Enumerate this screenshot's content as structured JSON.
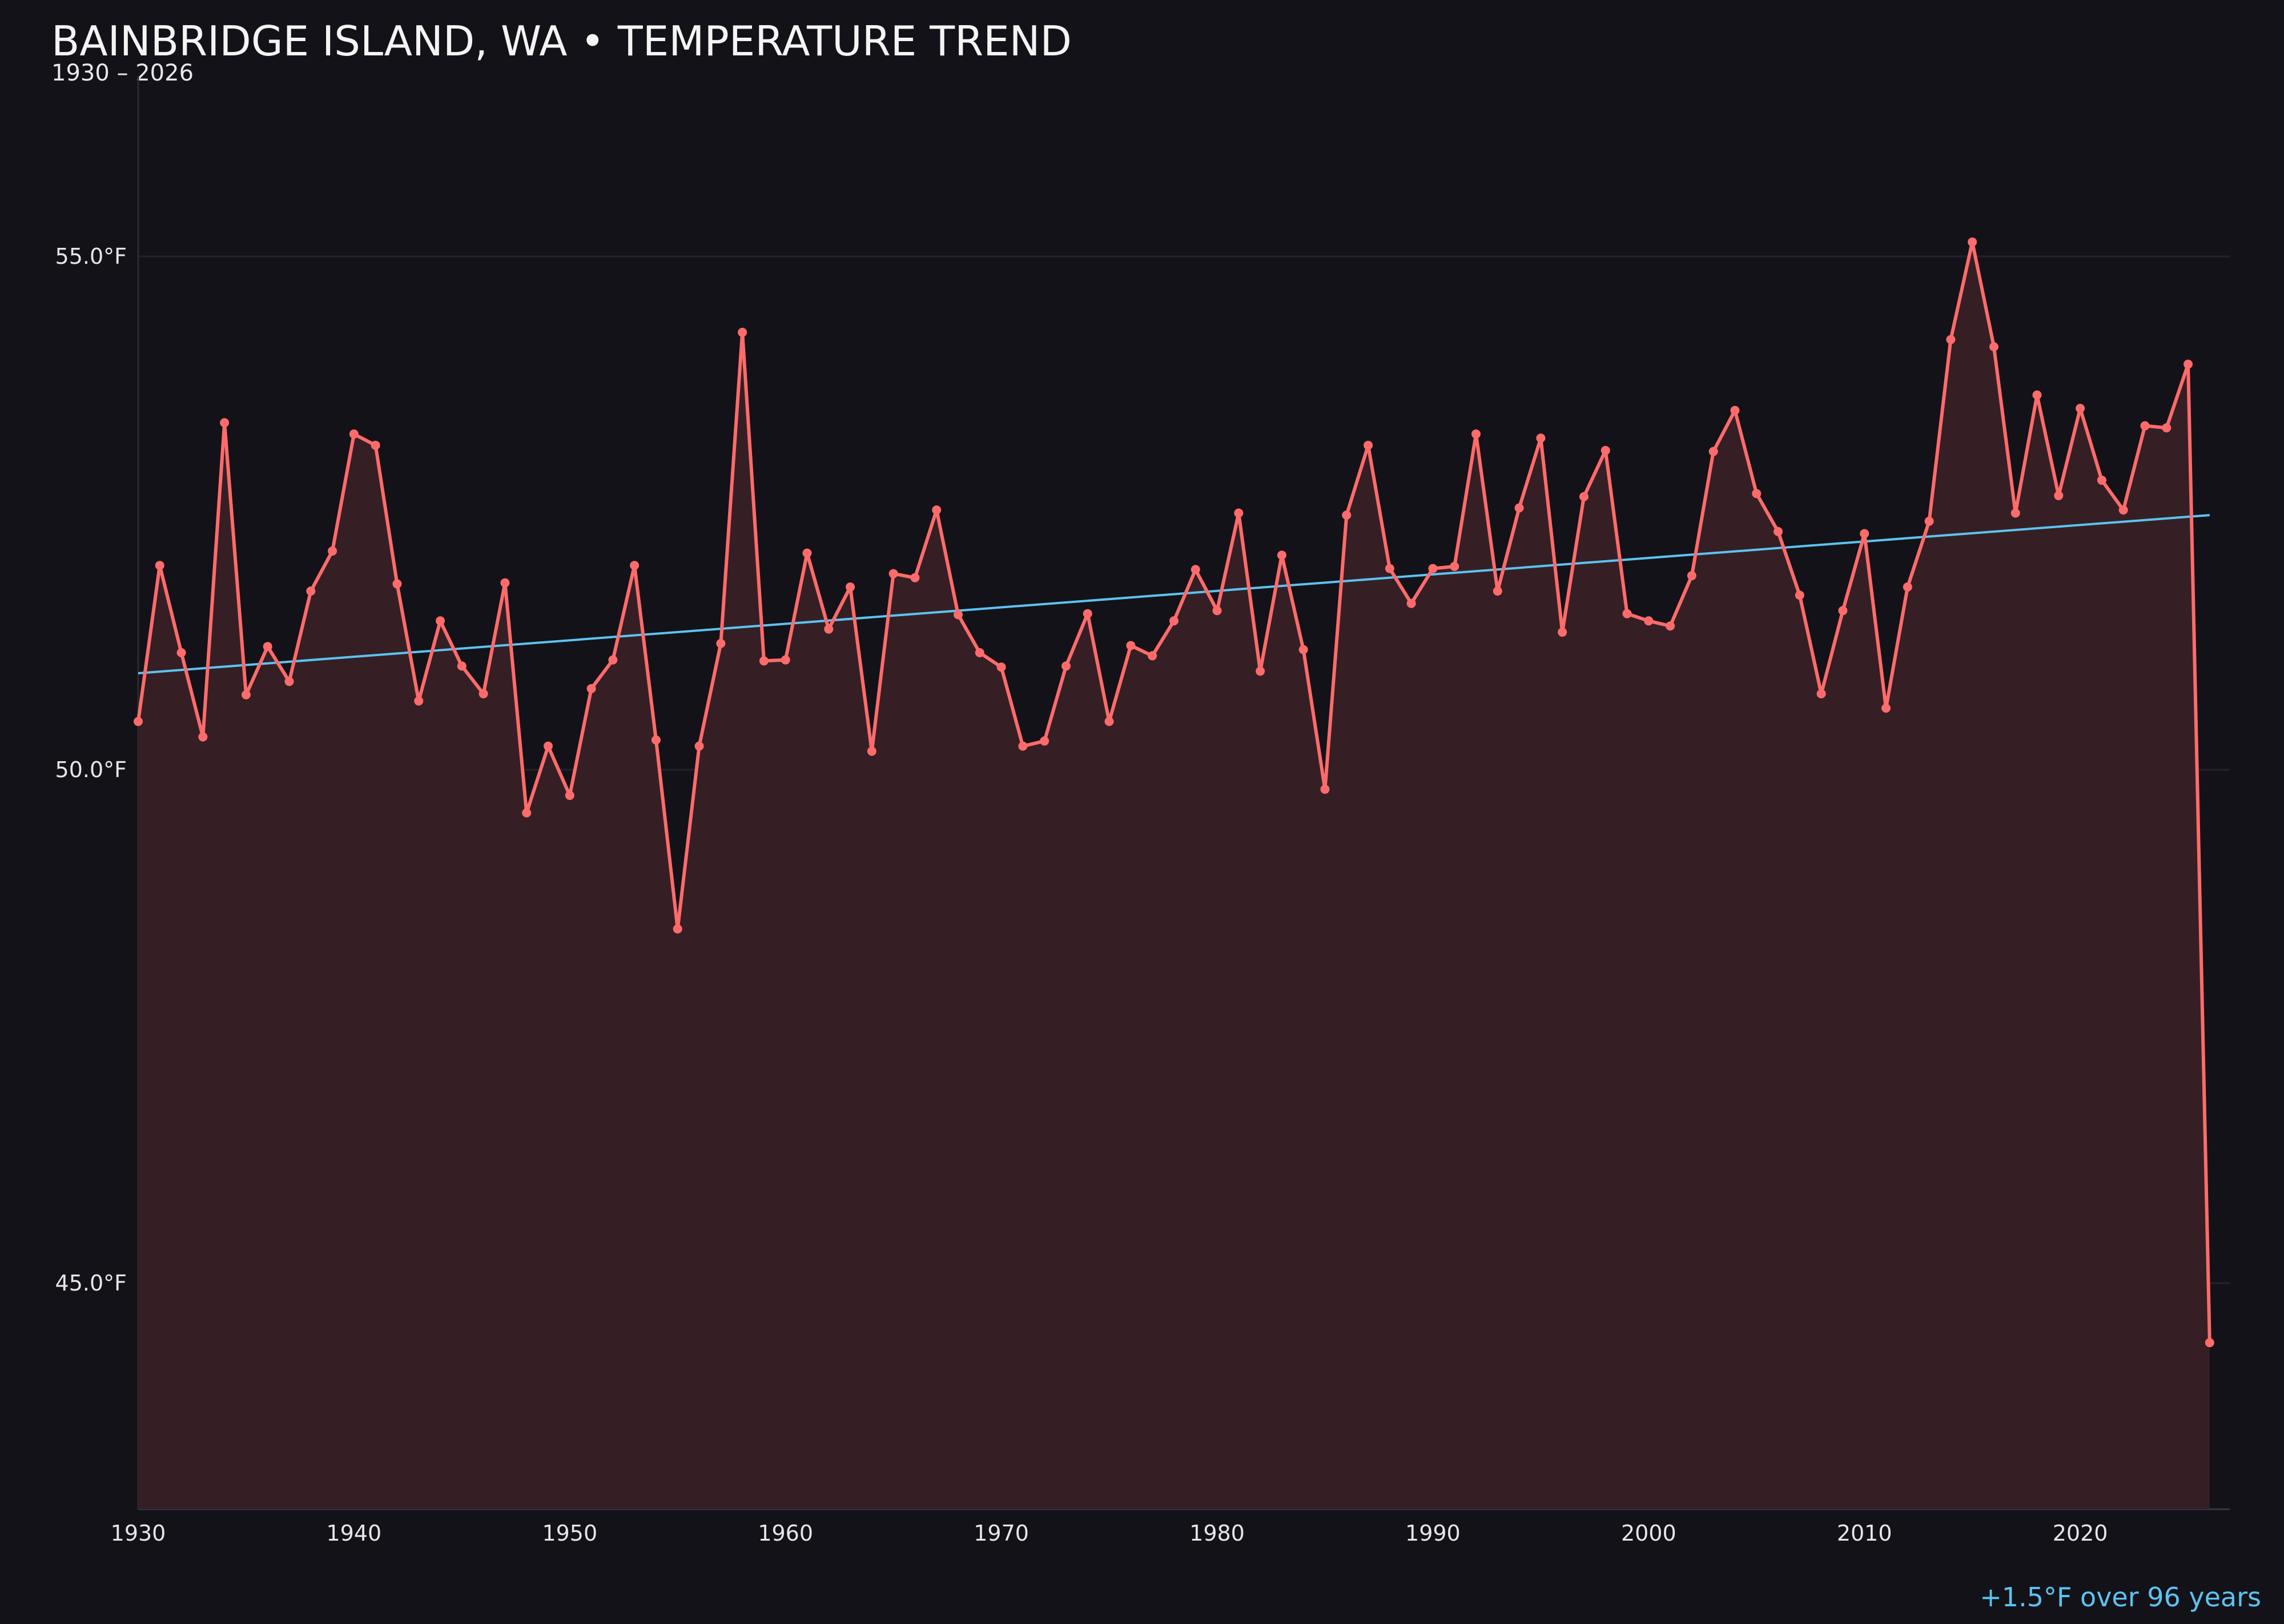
{
  "title": "BAINBRIDGE ISLAND, WA • TEMPERATURE TREND",
  "subtitle": "1930 – 2026",
  "footer": "+1.5°F over 96 years",
  "colors": {
    "background": "#131218",
    "line": "#ff6b6b",
    "fill": "#351f25",
    "trend": "#5cc3f0",
    "grid": "#24222a"
  },
  "chart_data": {
    "type": "line",
    "title": "BAINBRIDGE ISLAND, WA • TEMPERATURE TREND",
    "subtitle": "1930 – 2026",
    "xlabel": "",
    "ylabel": "",
    "xlim": [
      1930,
      2027
    ],
    "ylim": [
      42.8,
      56.8
    ],
    "grid": true,
    "x_ticks": [
      1930,
      1940,
      1950,
      1960,
      1970,
      1980,
      1990,
      2000,
      2010,
      2020
    ],
    "y_ticks": [
      45.0,
      50.0,
      55.0
    ],
    "y_tick_labels": [
      "45.0°F",
      "50.0°F",
      "55.0°F"
    ],
    "x": [
      1930,
      1931,
      1932,
      1933,
      1934,
      1935,
      1936,
      1937,
      1938,
      1939,
      1940,
      1941,
      1942,
      1943,
      1944,
      1945,
      1946,
      1947,
      1948,
      1949,
      1950,
      1951,
      1952,
      1953,
      1954,
      1955,
      1956,
      1957,
      1958,
      1959,
      1960,
      1961,
      1962,
      1963,
      1964,
      1965,
      1966,
      1967,
      1968,
      1969,
      1970,
      1971,
      1972,
      1973,
      1974,
      1975,
      1976,
      1977,
      1978,
      1979,
      1980,
      1981,
      1982,
      1983,
      1984,
      1985,
      1986,
      1987,
      1988,
      1989,
      1990,
      1991,
      1992,
      1993,
      1994,
      1995,
      1996,
      1997,
      1998,
      1999,
      2000,
      2001,
      2002,
      2003,
      2004,
      2005,
      2006,
      2007,
      2008,
      2009,
      2010,
      2011,
      2012,
      2013,
      2014,
      2015,
      2016,
      2017,
      2018,
      2019,
      2020,
      2021,
      2022,
      2023,
      2024,
      2025,
      2026
    ],
    "values": [
      50.47,
      51.99,
      51.14,
      50.32,
      53.38,
      50.73,
      51.2,
      50.86,
      51.74,
      52.13,
      53.27,
      53.16,
      51.81,
      50.67,
      51.45,
      51.01,
      50.74,
      51.82,
      49.58,
      50.23,
      49.75,
      50.79,
      51.07,
      51.99,
      50.29,
      48.45,
      50.23,
      51.23,
      54.26,
      51.06,
      51.07,
      52.11,
      51.37,
      51.78,
      50.18,
      51.91,
      51.87,
      52.53,
      51.51,
      51.14,
      51.0,
      50.23,
      50.28,
      51.01,
      51.52,
      50.47,
      51.21,
      51.11,
      51.45,
      51.95,
      51.55,
      52.5,
      50.96,
      52.09,
      51.17,
      49.81,
      52.48,
      53.16,
      51.96,
      51.62,
      51.96,
      51.98,
      53.27,
      51.74,
      52.55,
      53.23,
      51.34,
      52.66,
      53.11,
      51.52,
      51.45,
      51.4,
      51.89,
      53.1,
      53.5,
      52.69,
      52.32,
      51.7,
      50.74,
      51.55,
      52.3,
      50.6,
      51.78,
      52.42,
      54.19,
      55.14,
      54.12,
      52.5,
      53.65,
      52.67,
      53.52,
      52.82,
      52.53,
      53.35,
      53.33,
      53.95,
      44.42
    ],
    "trend": {
      "x": [
        1930,
        2026
      ],
      "y": [
        50.94,
        52.48
      ]
    },
    "annotation": "+1.5°F over 96 years"
  }
}
